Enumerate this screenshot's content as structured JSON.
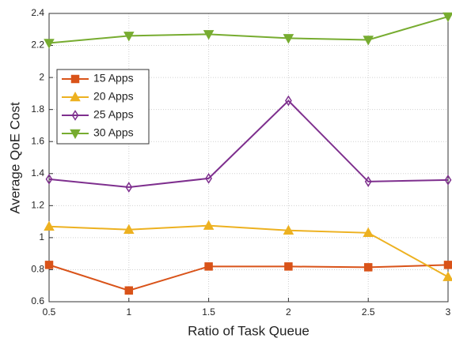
{
  "chart_data": {
    "type": "line",
    "x_label": "Ratio of Task Queue",
    "y_label": "Average QoE Cost",
    "x": [
      0.5,
      1,
      1.5,
      2,
      2.5,
      3
    ],
    "series": [
      {
        "name": "15 Apps",
        "color": "#d95319",
        "marker": "square",
        "values": [
          0.83,
          0.67,
          0.82,
          0.82,
          0.815,
          0.83
        ]
      },
      {
        "name": "20 Apps",
        "color": "#edb120",
        "marker": "triangle-up",
        "values": [
          1.07,
          1.05,
          1.075,
          1.045,
          1.03,
          0.755
        ]
      },
      {
        "name": "25 Apps",
        "color": "#7e2f8e",
        "marker": "diamond",
        "values": [
          1.365,
          1.315,
          1.37,
          1.855,
          1.35,
          1.36
        ]
      },
      {
        "name": "30 Apps",
        "color": "#77ac30",
        "marker": "triangle-down",
        "values": [
          2.215,
          2.26,
          2.27,
          2.245,
          2.235,
          2.38
        ]
      }
    ],
    "xlim": [
      0.5,
      3
    ],
    "xticks": [
      0.5,
      1,
      1.5,
      2,
      2.5,
      3
    ],
    "ylim": [
      0.6,
      2.4
    ],
    "yticks": [
      0.6,
      0.8,
      1,
      1.2,
      1.4,
      1.6,
      1.8,
      2,
      2.2,
      2.4
    ],
    "grid": true,
    "legend": "upper left"
  }
}
